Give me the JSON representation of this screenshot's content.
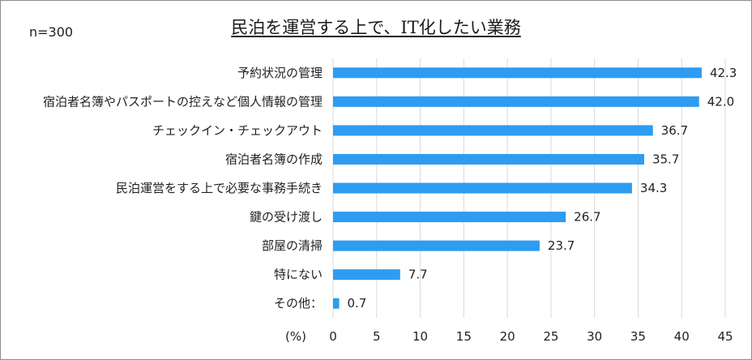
{
  "chart_data": {
    "type": "bar",
    "orientation": "horizontal",
    "title": "民泊を運営する上で、IT化したい業務",
    "sample_size": "n=300",
    "xlabel": "(%)",
    "xlim": [
      0,
      45
    ],
    "xticks": [
      0,
      5,
      10,
      15,
      20,
      25,
      30,
      35,
      40,
      45
    ],
    "grid": true,
    "bar_color": "#2e9cf0",
    "categories": [
      "予約状況の管理",
      "宿泊者名簿やパスポートの控えなど個人情報の管理",
      "チェックイン・チェックアウト",
      "宿泊者名簿の作成",
      "民泊運営をする上で必要な事務手続き",
      "鍵の受け渡し",
      "部屋の清掃",
      "特にない",
      "その他："
    ],
    "values": [
      42.3,
      42.0,
      36.7,
      35.7,
      34.3,
      26.7,
      23.7,
      7.7,
      0.7
    ],
    "value_labels": [
      "42.3",
      "42.0",
      "36.7",
      "35.7",
      "34.3",
      "26.7",
      "23.7",
      "7.7",
      "0.7"
    ]
  }
}
